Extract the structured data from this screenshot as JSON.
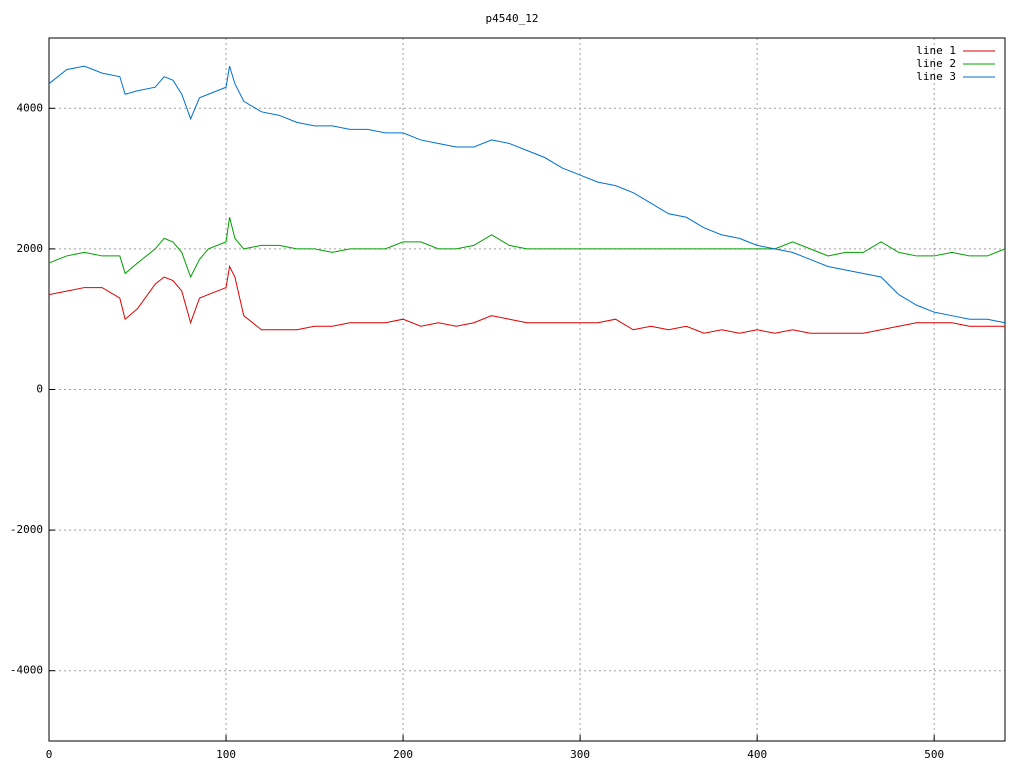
{
  "chart_data": {
    "type": "line",
    "title": "p4540_12",
    "x": [
      0,
      10,
      20,
      30,
      40,
      43,
      50,
      60,
      65,
      70,
      75,
      80,
      85,
      90,
      100,
      102,
      105,
      110,
      120,
      130,
      140,
      150,
      160,
      170,
      180,
      190,
      200,
      210,
      220,
      230,
      240,
      250,
      260,
      270,
      280,
      290,
      300,
      310,
      320,
      330,
      340,
      350,
      360,
      370,
      380,
      390,
      400,
      410,
      420,
      430,
      440,
      450,
      460,
      470,
      480,
      490,
      500,
      510,
      520,
      530,
      540
    ],
    "series": [
      {
        "name": "line 1",
        "color": "#e00000",
        "values": [
          1350,
          1400,
          1450,
          1450,
          1300,
          1000,
          1150,
          1500,
          1600,
          1550,
          1400,
          950,
          1300,
          1350,
          1450,
          1750,
          1600,
          1050,
          850,
          850,
          850,
          900,
          900,
          950,
          950,
          950,
          1000,
          900,
          950,
          900,
          950,
          1050,
          1000,
          950,
          950,
          950,
          950,
          950,
          1000,
          850,
          900,
          850,
          900,
          800,
          850,
          800,
          850,
          800,
          850,
          800,
          800,
          800,
          800,
          850,
          900,
          950,
          950,
          950,
          900,
          900,
          900
        ]
      },
      {
        "name": "line 2",
        "color": "#00a000",
        "values": [
          1800,
          1900,
          1950,
          1900,
          1900,
          1650,
          1800,
          2000,
          2150,
          2100,
          1950,
          1600,
          1850,
          2000,
          2100,
          2450,
          2150,
          2000,
          2050,
          2050,
          2000,
          2000,
          1950,
          2000,
          2000,
          2000,
          2100,
          2100,
          2000,
          2000,
          2050,
          2200,
          2050,
          2000,
          2000,
          2000,
          2000,
          2000,
          2000,
          2000,
          2000,
          2000,
          2000,
          2000,
          2000,
          2000,
          2000,
          2000,
          2100,
          2000,
          1900,
          1950,
          1950,
          2100,
          1950,
          1900,
          1900,
          1950,
          1900,
          1900,
          2000
        ]
      },
      {
        "name": "line 3",
        "color": "#0070d0",
        "values": [
          4350,
          4550,
          4600,
          4500,
          4450,
          4200,
          4250,
          4300,
          4450,
          4400,
          4200,
          3850,
          4150,
          4200,
          4300,
          4600,
          4350,
          4100,
          3950,
          3900,
          3800,
          3750,
          3750,
          3700,
          3700,
          3650,
          3650,
          3550,
          3500,
          3450,
          3450,
          3550,
          3500,
          3400,
          3300,
          3150,
          3050,
          2950,
          2900,
          2800,
          2650,
          2500,
          2450,
          2300,
          2200,
          2150,
          2050,
          2000,
          1950,
          1850,
          1750,
          1700,
          1650,
          1600,
          1350,
          1200,
          1100,
          1050,
          1000,
          1000,
          950
        ]
      }
    ],
    "xlim": [
      0,
      540
    ],
    "ylim": [
      -5000,
      5000
    ],
    "xticks": [
      0,
      100,
      200,
      300,
      400,
      500
    ],
    "yticks": [
      -4000,
      -2000,
      0,
      2000,
      4000
    ],
    "grid": true,
    "legend": "top-right"
  }
}
